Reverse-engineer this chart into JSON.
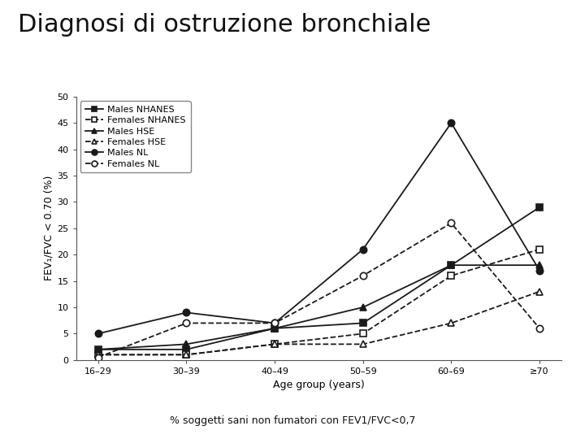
{
  "title": "Diagnosi di ostruzione bronchiale",
  "subtitle": "% soggetti sani non fumatori con FEV1/FVC<0,7",
  "xlabel": "Age group (years)",
  "ylabel": "FEV₁/FVC < 0.70 (%)",
  "x_labels": [
    "16–29",
    "30–39",
    "40–49",
    "50–59",
    "60–69",
    "≥70"
  ],
  "ylim": [
    0,
    50
  ],
  "yticks": [
    0,
    5,
    10,
    15,
    20,
    25,
    30,
    35,
    40,
    45,
    50
  ],
  "series": [
    {
      "label": "Males NHANES",
      "values": [
        2,
        2,
        6,
        7,
        18,
        29
      ],
      "marker": "s",
      "linestyle": "-",
      "markerfilled": true
    },
    {
      "label": "Females NHANES",
      "values": [
        1,
        1,
        3,
        5,
        16,
        21
      ],
      "marker": "s",
      "linestyle": "--",
      "markerfilled": false
    },
    {
      "label": "Males HSE",
      "values": [
        2,
        3,
        6,
        10,
        18,
        18
      ],
      "marker": "^",
      "linestyle": "-",
      "markerfilled": true
    },
    {
      "label": "Females HSE",
      "values": [
        1,
        1,
        3,
        3,
        7,
        13
      ],
      "marker": "^",
      "linestyle": "--",
      "markerfilled": false
    },
    {
      "label": "Males NL",
      "values": [
        5,
        9,
        7,
        21,
        45,
        17
      ],
      "marker": "o",
      "linestyle": "-",
      "markerfilled": true
    },
    {
      "label": "Females NL",
      "values": [
        0.5,
        7,
        7,
        16,
        26,
        6
      ],
      "marker": "o",
      "linestyle": "--",
      "markerfilled": false
    }
  ],
  "line_color": "#1a1a1a",
  "background_color": "#ffffff",
  "title_fontsize": 22,
  "axis_fontsize": 9,
  "legend_fontsize": 8,
  "tick_fontsize": 8,
  "subtitle_fontsize": 9,
  "linewidth": 1.3,
  "markersize": 6
}
